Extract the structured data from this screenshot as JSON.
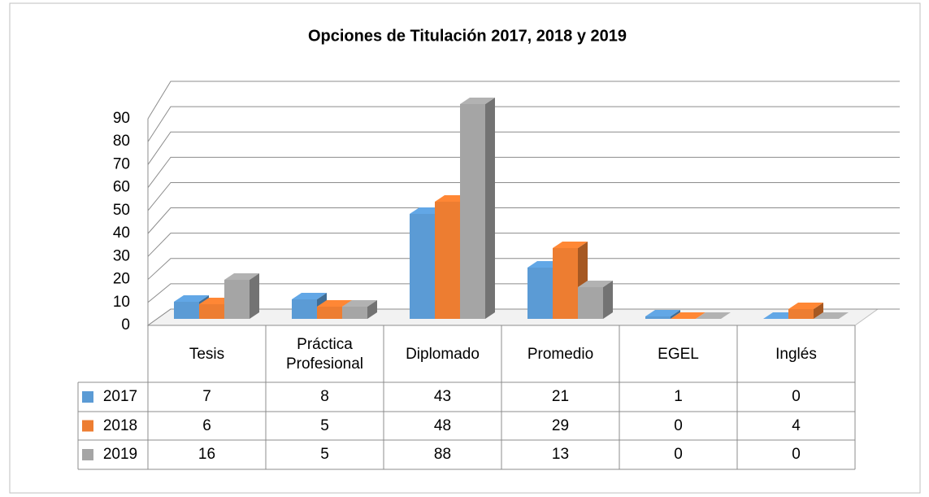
{
  "chart_data": {
    "type": "bar3d",
    "title": "Opciones de Titulación 2017, 2018 y 2019",
    "categories": [
      "Tesis",
      "Práctica Profesional",
      "Diplomado",
      "Promedio",
      "EGEL",
      "Inglés"
    ],
    "series": [
      {
        "name": "2017",
        "color": "#5b9bd5",
        "values": [
          7,
          8,
          43,
          21,
          1,
          0
        ]
      },
      {
        "name": "2018",
        "color": "#ed7d31",
        "values": [
          6,
          5,
          48,
          29,
          0,
          4
        ]
      },
      {
        "name": "2019",
        "color": "#a5a5a5",
        "values": [
          16,
          5,
          88,
          13,
          0,
          0
        ]
      }
    ],
    "ylim": [
      0,
      90
    ],
    "yticks": [
      0,
      10,
      20,
      30,
      40,
      50,
      60,
      70,
      80,
      90
    ],
    "grid": true,
    "data_table": true
  }
}
